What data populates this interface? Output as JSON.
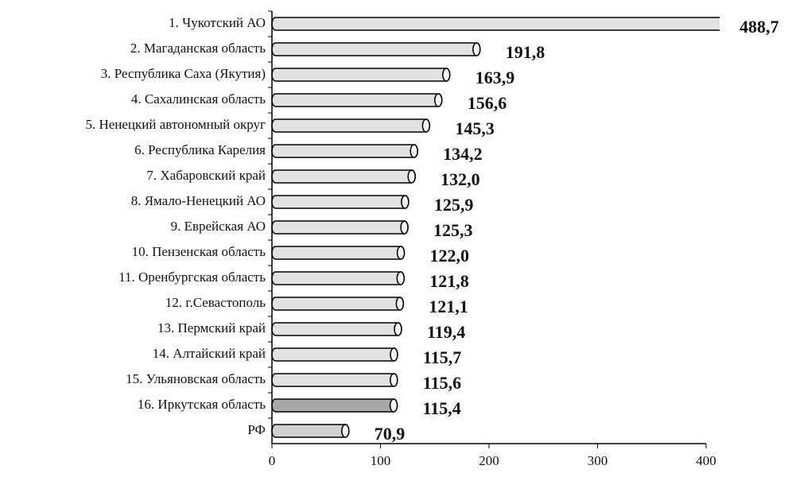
{
  "chart_data": {
    "type": "bar",
    "orientation": "horizontal",
    "categories": [
      "1. Чукотский АО",
      "2. Магаданская область",
      "3. Республика Саха (Якутия)",
      "4. Сахалинская область",
      "5. Ненецкий автономный округ",
      "6. Республика Карелия",
      "7. Хабаровский край",
      "8. Ямало-Ненецкий АО",
      "9. Еврейская АО",
      "10. Пензенская область",
      "11. Оренбургская область",
      "12. г.Севастополь",
      "13. Пермский край",
      "14. Алтайский край",
      "15. Ульяновская область",
      "16. Иркутская область",
      "РФ"
    ],
    "values": [
      488.7,
      191.8,
      163.9,
      156.6,
      145.3,
      134.2,
      132.0,
      125.9,
      125.3,
      122.0,
      121.8,
      121.1,
      119.4,
      115.7,
      115.6,
      115.4,
      70.9
    ],
    "value_labels": [
      "488,7",
      "191,8",
      "163,9",
      "156,6",
      "145,3",
      "134,2",
      "132,0",
      "125,9",
      "125,3",
      "122,0",
      "121,8",
      "121,1",
      "119,4",
      "115,7",
      "115,6",
      "115,4",
      "70,9"
    ],
    "colors": [
      "#e2e2e2",
      "#e2e2e2",
      "#e2e2e2",
      "#e2e2e2",
      "#e2e2e2",
      "#e2e2e2",
      "#e2e2e2",
      "#e2e2e2",
      "#e2e2e2",
      "#e2e2e2",
      "#e2e2e2",
      "#e2e2e2",
      "#e2e2e2",
      "#e2e2e2",
      "#e2e2e2",
      "#a8a8a8",
      "#d0d0d0"
    ],
    "xlim": [
      0,
      400
    ],
    "xticks": [
      0,
      100,
      200,
      300,
      400
    ]
  }
}
